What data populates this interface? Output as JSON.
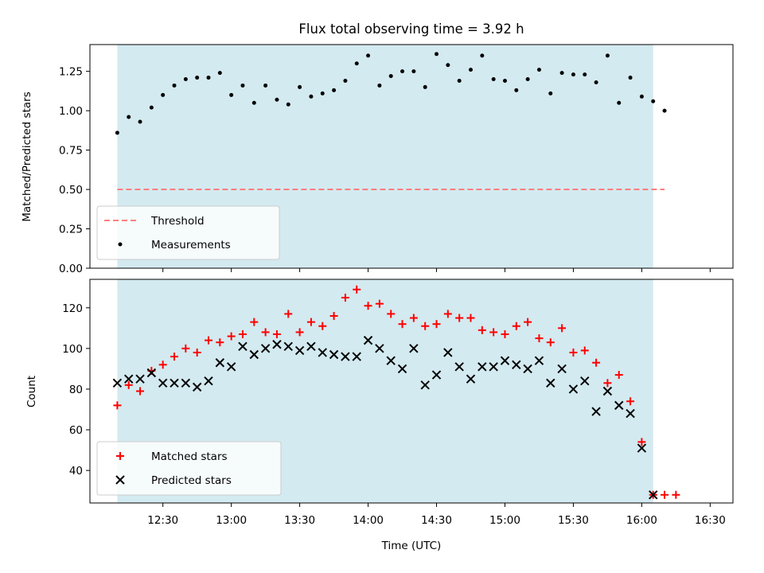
{
  "chart_data": {
    "type": "scatter",
    "title": "Flux total observing time = 3.92 h",
    "xlabel": "Time (UTC)",
    "x_ticks": [
      "12:30",
      "13:00",
      "13:30",
      "14:00",
      "14:30",
      "15:00",
      "15:30",
      "16:00",
      "16:30"
    ],
    "x_tick_minutes": [
      750,
      780,
      810,
      840,
      870,
      900,
      930,
      960,
      990
    ],
    "xlim_minutes": [
      718,
      1000
    ],
    "shaded_interval_minutes": [
      730,
      965
    ],
    "colors": {
      "shade": "#d3eaf0",
      "threshold": "#ff7f7f",
      "measurement": "#000000",
      "matched": "#ff0000",
      "predicted": "#000000"
    },
    "top": {
      "ylabel": "Matched/Predicted stars",
      "ylim": [
        0,
        1.42
      ],
      "y_ticks": [
        "0.00",
        "0.25",
        "0.50",
        "0.75",
        "1.00",
        "1.25"
      ],
      "y_tick_values": [
        0,
        0.25,
        0.5,
        0.75,
        1.0,
        1.25
      ],
      "threshold": {
        "name": "Threshold",
        "value": 0.5,
        "x_range_minutes": [
          730,
          970
        ]
      },
      "measurements": {
        "name": "Measurements",
        "x_minutes": [
          730,
          735,
          740,
          745,
          750,
          755,
          760,
          765,
          770,
          775,
          780,
          785,
          790,
          795,
          800,
          805,
          810,
          815,
          820,
          825,
          830,
          835,
          840,
          845,
          850,
          855,
          860,
          865,
          870,
          875,
          880,
          885,
          890,
          895,
          900,
          905,
          910,
          915,
          920,
          925,
          930,
          935,
          940,
          945,
          950,
          955,
          960,
          965,
          970
        ],
        "y": [
          0.86,
          0.96,
          0.93,
          1.02,
          1.1,
          1.16,
          1.2,
          1.21,
          1.21,
          1.24,
          1.1,
          1.16,
          1.05,
          1.16,
          1.07,
          1.04,
          1.15,
          1.09,
          1.11,
          1.13,
          1.19,
          1.3,
          1.35,
          1.16,
          1.22,
          1.25,
          1.25,
          1.15,
          1.36,
          1.29,
          1.19,
          1.26,
          1.35,
          1.2,
          1.19,
          1.13,
          1.2,
          1.26,
          1.11,
          1.24,
          1.23,
          1.23,
          1.18,
          1.35,
          1.05,
          1.21,
          1.09,
          1.06,
          1.0
        ]
      }
    },
    "bottom": {
      "ylabel": "Count",
      "ylim": [
        24,
        134
      ],
      "y_ticks": [
        "40",
        "60",
        "80",
        "100",
        "120"
      ],
      "y_tick_values": [
        40,
        60,
        80,
        100,
        120
      ],
      "series": [
        {
          "name": "Matched stars",
          "marker": "plus",
          "x_minutes": [
            730,
            735,
            740,
            745,
            750,
            755,
            760,
            765,
            770,
            775,
            780,
            785,
            790,
            795,
            800,
            805,
            810,
            815,
            820,
            825,
            830,
            835,
            840,
            845,
            850,
            855,
            860,
            865,
            870,
            875,
            880,
            885,
            890,
            895,
            900,
            905,
            910,
            915,
            920,
            925,
            930,
            935,
            940,
            945,
            950,
            955,
            960,
            965,
            970,
            975
          ],
          "values": [
            72,
            82,
            79,
            89,
            92,
            96,
            100,
            98,
            104,
            103,
            106,
            107,
            113,
            108,
            107,
            117,
            108,
            113,
            111,
            116,
            125,
            129,
            121,
            122,
            117,
            112,
            115,
            111,
            112,
            117,
            115,
            115,
            109,
            108,
            107,
            111,
            113,
            105,
            103,
            110,
            98,
            99,
            93,
            83,
            87,
            74,
            54,
            28,
            28,
            28
          ]
        },
        {
          "name": "Predicted stars",
          "marker": "x",
          "x_minutes": [
            730,
            735,
            740,
            745,
            750,
            755,
            760,
            765,
            770,
            775,
            780,
            785,
            790,
            795,
            800,
            805,
            810,
            815,
            820,
            825,
            830,
            835,
            840,
            845,
            850,
            855,
            860,
            865,
            870,
            875,
            880,
            885,
            890,
            895,
            900,
            905,
            910,
            915,
            920,
            925,
            930,
            935,
            940,
            945,
            950,
            955,
            960,
            965
          ],
          "values": [
            83,
            85,
            85,
            88,
            83,
            83,
            83,
            81,
            84,
            93,
            91,
            101,
            97,
            100,
            102,
            101,
            99,
            101,
            98,
            97,
            96,
            96,
            104,
            100,
            94,
            90,
            100,
            82,
            87,
            98,
            91,
            85,
            91,
            91,
            94,
            92,
            90,
            94,
            83,
            90,
            80,
            84,
            69,
            79,
            72,
            68,
            51,
            28
          ]
        }
      ]
    }
  }
}
